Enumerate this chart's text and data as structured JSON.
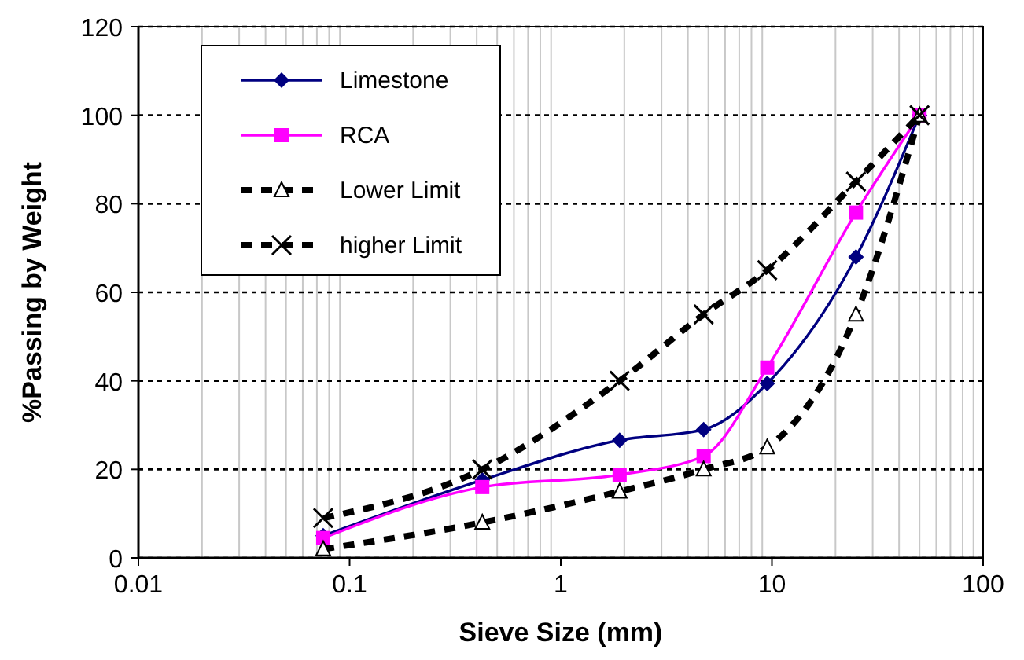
{
  "chart_data": {
    "type": "line",
    "xlabel": "Sieve Size (mm)",
    "ylabel": "%Passing by Weight",
    "log": "x",
    "xlim": [
      0.01,
      100
    ],
    "xticks": [
      0.01,
      0.1,
      1,
      10,
      100
    ],
    "ylim": [
      0,
      120
    ],
    "yticks": [
      0,
      20,
      40,
      60,
      80,
      100,
      120
    ],
    "grid": true,
    "legend": "top left",
    "x": [
      0.075,
      0.425,
      1.9,
      4.75,
      9.5,
      25,
      50
    ],
    "series": [
      {
        "name": "Limestone",
        "color": "#000080",
        "marker": "diamond",
        "line_style": "solid",
        "values": [
          5,
          17.6,
          26.6,
          29,
          39.4,
          68,
          100
        ]
      },
      {
        "name": "RCA",
        "color": "#ff00ff",
        "marker": "square",
        "line_style": "solid",
        "values": [
          4.5,
          16,
          18.8,
          23,
          43,
          78,
          100
        ]
      },
      {
        "name": "Lower Limit",
        "color": "#000000",
        "marker": "triangle",
        "line_style": "dashed",
        "values": [
          2,
          8,
          15,
          20,
          25,
          55,
          100
        ]
      },
      {
        "name": "higher Limit",
        "color": "#000000",
        "marker": "cross",
        "line_style": "dashed",
        "values": [
          9,
          20,
          40,
          55,
          65,
          85,
          100
        ]
      }
    ]
  }
}
